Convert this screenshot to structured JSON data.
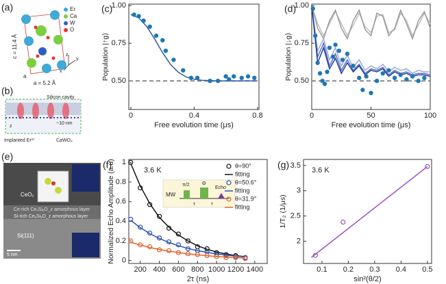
{
  "panel_a": {
    "label": "(a)",
    "c_axis": "c = 11.4 Å",
    "a_axis": "a = 5.2 Å",
    "a_edge": "a",
    "legend": [
      "Er",
      "Ca",
      "W",
      "O"
    ],
    "axes": [
      "z",
      "y",
      "x"
    ]
  },
  "panel_b": {
    "label": "(b)",
    "cavity": "Silicon cavity",
    "depth": "~10 nm",
    "implanted": "Implanted Er³⁺",
    "substrate": "CaWO₄",
    "z": "z"
  },
  "panel_e": {
    "label": "(e)",
    "top": "CeO₂",
    "layer1": "Ce-rich CeₓSiᵧO_z amorphous layer",
    "layer2": "Si-rich CeₓSiᵧO_z amorphous layer",
    "bottom": "Si(111)",
    "scale": "5 nm"
  },
  "chart_data": [
    {
      "type": "line",
      "panel_label": "(c)",
      "xlabel": "Free evolution time (μs)",
      "ylabel": "Population |↑g⟩",
      "xlim": [
        -0.013,
        0.809
      ],
      "ylim": [
        0.31,
        1.01
      ],
      "xticks": [
        0,
        0.4,
        0.8
      ],
      "yticks": [
        {
          "value": 0.5,
          "label": "0.50"
        },
        0.75,
        {
          "value": 1,
          "label": "1.00"
        }
      ],
      "reference_line": 0.5,
      "reference_color": "#888888",
      "series": [
        {
          "style": "line",
          "color": "#2a5caa",
          "x": [
            0,
            0.05,
            0.1,
            0.15,
            0.2,
            0.25,
            0.3,
            0.35,
            0.4,
            0.45,
            0.5,
            0.55,
            0.6,
            0.65,
            0.7,
            0.75,
            0.8
          ],
          "values": [
            0.94,
            0.918,
            0.862,
            0.779,
            0.688,
            0.61,
            0.557,
            0.526,
            0.511,
            0.504,
            0.502,
            0.5,
            0.5,
            0.5,
            0.5,
            0.5,
            0.5
          ]
        },
        {
          "style": "points",
          "marker": "filled",
          "color": "#1f77b4",
          "x": [
            0.02,
            0.05,
            0.08,
            0.12,
            0.16,
            0.2,
            0.22,
            0.27,
            0.33,
            0.38,
            0.42,
            0.5,
            0.55,
            0.6,
            0.62,
            0.65,
            0.7,
            0.74,
            0.78
          ],
          "values": [
            0.94,
            0.93,
            0.9,
            0.86,
            0.8,
            0.77,
            0.7,
            0.64,
            0.57,
            0.52,
            0.52,
            0.5,
            0.5,
            0.53,
            0.51,
            0.53,
            0.52,
            0.53,
            0.52
          ]
        }
      ]
    },
    {
      "type": "line",
      "panel_label": "(d)",
      "xlabel": "Free evolution time (μs)",
      "ylabel": "Population |↓g⟩",
      "xlim": [
        0,
        100
      ],
      "ylim": [
        0.31,
        1.01
      ],
      "xticks": [
        0,
        50,
        100
      ],
      "yticks": [
        {
          "value": 0.5,
          "label": "0.50"
        },
        0.75,
        {
          "value": 1,
          "label": "1.00"
        }
      ],
      "reference_line": 0.5,
      "reference_color": "#888888",
      "series": [
        {
          "style": "line",
          "color": "#bdbdbd",
          "x": [
            0,
            5,
            10,
            15,
            20,
            25,
            30,
            35,
            40,
            45,
            50,
            55,
            60,
            65,
            70,
            75,
            80,
            85,
            90,
            95,
            100
          ],
          "values": [
            1,
            0.88,
            0.8,
            0.88,
            0.96,
            0.88,
            0.8,
            0.87,
            0.95,
            0.86,
            0.82,
            0.93,
            0.94,
            0.82,
            0.84,
            0.95,
            0.9,
            0.8,
            0.87,
            0.95,
            0.88
          ]
        },
        {
          "style": "line",
          "color": "#9a9a9a",
          "x": [
            0,
            5,
            10,
            15,
            20,
            25,
            30,
            35,
            40,
            45,
            50,
            55,
            60,
            65,
            70,
            75,
            80,
            85,
            90,
            95,
            100
          ],
          "values": [
            1,
            0.85,
            0.78,
            0.9,
            0.97,
            0.85,
            0.78,
            0.9,
            0.97,
            0.84,
            0.8,
            0.95,
            0.93,
            0.8,
            0.85,
            0.97,
            0.88,
            0.78,
            0.9,
            0.96,
            0.85
          ]
        },
        {
          "style": "line",
          "color": "#9aa8dc",
          "x": [
            0,
            5,
            10,
            15,
            20,
            25,
            30,
            35,
            40,
            45,
            50,
            55,
            60,
            65,
            70,
            75,
            80,
            85,
            90,
            95,
            100
          ],
          "values": [
            1,
            0.7,
            0.78,
            0.64,
            0.72,
            0.6,
            0.67,
            0.59,
            0.64,
            0.57,
            0.6,
            0.58,
            0.61,
            0.56,
            0.59,
            0.57,
            0.58,
            0.55,
            0.57,
            0.56,
            0.56
          ]
        },
        {
          "style": "line",
          "color": "#5a6fc0",
          "x": [
            0,
            5,
            10,
            15,
            20,
            25,
            30,
            35,
            40,
            45,
            50,
            55,
            60,
            65,
            70,
            75,
            80,
            85,
            90,
            95,
            100
          ],
          "values": [
            1,
            0.66,
            0.75,
            0.6,
            0.68,
            0.57,
            0.64,
            0.57,
            0.61,
            0.55,
            0.58,
            0.57,
            0.59,
            0.54,
            0.57,
            0.55,
            0.56,
            0.54,
            0.55,
            0.55,
            0.54
          ]
        },
        {
          "style": "line",
          "color": "#1f3f99",
          "x": [
            0,
            5,
            10,
            15,
            20,
            25,
            30,
            35,
            40,
            45,
            50,
            55,
            60,
            65,
            70,
            75,
            80,
            85,
            90,
            95,
            100
          ],
          "values": [
            1,
            0.62,
            0.72,
            0.58,
            0.65,
            0.55,
            0.62,
            0.56,
            0.6,
            0.54,
            0.57,
            0.56,
            0.58,
            0.53,
            0.56,
            0.54,
            0.55,
            0.53,
            0.54,
            0.54,
            0.53
          ]
        },
        {
          "style": "points",
          "marker": "filled",
          "color": "#1f77b4",
          "x": [
            1,
            3,
            5,
            7,
            9,
            11,
            13,
            15,
            18,
            20,
            23,
            26,
            30,
            35,
            40,
            43,
            46,
            50,
            55,
            60,
            65,
            70,
            75,
            80,
            85,
            90,
            95
          ],
          "values": [
            0.98,
            0.8,
            0.62,
            0.55,
            0.5,
            0.48,
            0.56,
            0.72,
            0.66,
            0.74,
            0.7,
            0.64,
            0.68,
            0.6,
            0.52,
            0.44,
            0.53,
            0.42,
            0.5,
            0.55,
            0.57,
            0.52,
            0.54,
            0.51,
            0.53,
            0.5,
            0.52
          ]
        }
      ]
    },
    {
      "type": "line",
      "panel_label": "(f)",
      "xlabel": "2τ (ns)",
      "ylabel": "Normalized Echo Amplitude (a.u)",
      "annotation": "3.6 K",
      "xlim": [
        80,
        1530
      ],
      "ylim": [
        -0.03,
        1.03
      ],
      "xticks": [
        200,
        400,
        600,
        800,
        1000,
        1200,
        1400
      ],
      "yticks": [
        0,
        0.2,
        0.4,
        0.6,
        0.8,
        1
      ],
      "legend": "upper right",
      "inset": {
        "channel": "MW",
        "pulse1": "π/2",
        "pulse2": "Θ",
        "echo": "Echo",
        "delay1": "τ",
        "delay2": "τ"
      },
      "series": [
        {
          "name": "θ=90°",
          "style": "points",
          "marker": "open",
          "color": "#111111",
          "x": [
            100,
            200,
            300,
            400,
            500,
            600,
            700,
            800,
            900,
            1000,
            1100,
            1200,
            1300
          ],
          "values": [
            1,
            0.74,
            0.57,
            0.45,
            0.33,
            0.27,
            0.2,
            0.14,
            0.12,
            0.08,
            0.06,
            0.05,
            0.03
          ]
        },
        {
          "name": "fitting",
          "style": "line",
          "color": "#111111",
          "x": [
            100,
            200,
            300,
            400,
            500,
            600,
            700,
            800,
            900,
            1000,
            1100,
            1200,
            1300
          ],
          "values": [
            0.99,
            0.76,
            0.58,
            0.44,
            0.34,
            0.26,
            0.2,
            0.15,
            0.115,
            0.087,
            0.066,
            0.05,
            0.039
          ]
        },
        {
          "name": "θ=50.6°",
          "style": "points",
          "marker": "open",
          "color": "#2b4fb3",
          "x": [
            100,
            200,
            300,
            400,
            500,
            600,
            700,
            800,
            900,
            1000,
            1100,
            1200,
            1300
          ],
          "values": [
            0.42,
            0.34,
            0.28,
            0.23,
            0.19,
            0.16,
            0.12,
            0.1,
            0.09,
            0.06,
            0.05,
            0.04,
            0.03
          ]
        },
        {
          "name": "fitting",
          "style": "line",
          "color": "#2b4fb3",
          "x": [
            100,
            200,
            300,
            400,
            500,
            600,
            700,
            800,
            900,
            1000,
            1100,
            1200,
            1300
          ],
          "values": [
            0.41,
            0.335,
            0.274,
            0.225,
            0.184,
            0.151,
            0.123,
            0.101,
            0.083,
            0.068,
            0.055,
            0.045,
            0.037
          ]
        },
        {
          "name": "θ=31.9°",
          "style": "points",
          "marker": "open",
          "color": "#e0622a",
          "x": [
            100,
            200,
            300,
            400,
            500,
            600,
            700,
            800,
            900,
            1000,
            1100,
            1200,
            1300
          ],
          "values": [
            0.2,
            0.16,
            0.14,
            0.11,
            0.1,
            0.08,
            0.07,
            0.06,
            0.05,
            0.04,
            0.03,
            0.03,
            0.02
          ]
        },
        {
          "name": "fitting",
          "style": "line",
          "color": "#e0622a",
          "x": [
            100,
            200,
            300,
            400,
            500,
            600,
            700,
            800,
            900,
            1000,
            1100,
            1200,
            1300
          ],
          "values": [
            0.186,
            0.158,
            0.133,
            0.113,
            0.095,
            0.081,
            0.068,
            0.058,
            0.049,
            0.041,
            0.035,
            0.029,
            0.025
          ]
        }
      ]
    },
    {
      "type": "line",
      "panel_label": "(g)",
      "xlabel": "sin²(θ/2)",
      "ylabel": "1/T₂ (1/μs)",
      "annotation": "3.6 K",
      "xlim": [
        0.03,
        0.516
      ],
      "ylim": [
        1.56,
        3.62
      ],
      "xticks": [
        0.1,
        0.2,
        0.3,
        0.4,
        0.5
      ],
      "yticks": [
        2,
        2.5,
        3,
        3.5
      ],
      "series": [
        {
          "style": "line",
          "color": "#9b4fc0",
          "x": [
            0.06,
            0.5
          ],
          "values": [
            1.68,
            3.48
          ]
        },
        {
          "style": "points",
          "marker": "open",
          "color": "#9b4fc0",
          "x": [
            0.075,
            0.18,
            0.5
          ],
          "values": [
            1.72,
            2.38,
            3.48
          ]
        }
      ]
    }
  ]
}
